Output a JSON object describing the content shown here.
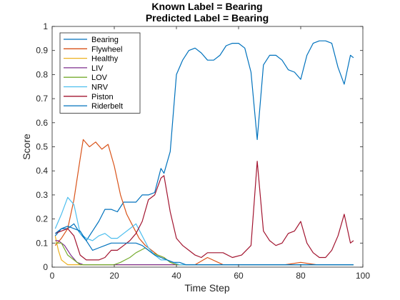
{
  "chart_data": {
    "type": "line",
    "title": "Known Label = Bearing",
    "subtitle": "Predicted Label = Bearing",
    "xlabel": "Time Step",
    "ylabel": "Score",
    "xlim": [
      0,
      100
    ],
    "ylim": [
      0,
      1
    ],
    "xticks": [
      0,
      20,
      40,
      60,
      80,
      100
    ],
    "yticks": [
      0,
      0.1,
      0.2,
      0.3,
      0.4,
      0.5,
      0.6,
      0.7,
      0.8,
      0.9,
      1
    ],
    "ytick_labels": [
      "0",
      "0.1",
      "0.2",
      "0.3",
      "0.4",
      "0.5",
      "0.6",
      "0.7",
      "0.8",
      "0.9",
      "1"
    ],
    "grid": false,
    "legend_position": "top-left",
    "series": [
      {
        "name": "Bearing",
        "color": "#0072BD",
        "x": [
          1,
          3,
          5,
          7,
          9,
          11,
          13,
          15,
          17,
          19,
          21,
          23,
          25,
          27,
          29,
          31,
          33,
          35,
          36,
          38,
          40,
          42,
          44,
          46,
          48,
          50,
          52,
          54,
          56,
          58,
          60,
          62,
          64,
          66,
          68,
          70,
          72,
          74,
          76,
          78,
          80,
          82,
          84,
          86,
          88,
          90,
          92,
          94,
          96,
          97
        ],
        "y": [
          0.13,
          0.16,
          0.16,
          0.18,
          0.14,
          0.11,
          0.15,
          0.19,
          0.24,
          0.24,
          0.23,
          0.27,
          0.27,
          0.27,
          0.3,
          0.3,
          0.31,
          0.41,
          0.39,
          0.48,
          0.8,
          0.86,
          0.9,
          0.91,
          0.89,
          0.86,
          0.86,
          0.88,
          0.92,
          0.93,
          0.93,
          0.91,
          0.81,
          0.53,
          0.84,
          0.88,
          0.88,
          0.86,
          0.82,
          0.81,
          0.78,
          0.88,
          0.93,
          0.94,
          0.94,
          0.93,
          0.83,
          0.76,
          0.88,
          0.87
        ]
      },
      {
        "name": "Flywheel",
        "color": "#D95319",
        "x": [
          1,
          3,
          5,
          7,
          9,
          10,
          12,
          14,
          16,
          18,
          20,
          22,
          24,
          26,
          28,
          30,
          32,
          34,
          36,
          38,
          40,
          42,
          44,
          46,
          50,
          55,
          60,
          65,
          70,
          75,
          80,
          85,
          90,
          95,
          97
        ],
        "y": [
          0.09,
          0.12,
          0.16,
          0.28,
          0.45,
          0.53,
          0.5,
          0.52,
          0.49,
          0.51,
          0.42,
          0.3,
          0.22,
          0.17,
          0.12,
          0.09,
          0.07,
          0.05,
          0.04,
          0.02,
          0.01,
          0.01,
          0.01,
          0.01,
          0.04,
          0.01,
          0.01,
          0.01,
          0.01,
          0.01,
          0.02,
          0.01,
          0.01,
          0.01,
          0.01
        ]
      },
      {
        "name": "Healthy",
        "color": "#EDB120",
        "x": [
          1,
          2,
          3,
          4,
          5,
          6,
          8,
          10,
          15,
          20,
          30,
          40,
          50,
          60,
          70,
          80,
          90,
          97
        ],
        "y": [
          0.13,
          0.07,
          0.03,
          0.02,
          0.01,
          0.01,
          0.01,
          0.01,
          0.01,
          0.01,
          0.01,
          0.01,
          0.01,
          0.01,
          0.01,
          0.01,
          0.01,
          0.01
        ]
      },
      {
        "name": "LIV",
        "color": "#7E2F8E",
        "x": [
          1,
          2,
          4,
          6,
          8,
          10,
          12,
          15,
          20,
          25,
          30,
          35,
          40,
          50,
          60,
          70,
          80,
          90,
          97
        ],
        "y": [
          0.11,
          0.11,
          0.09,
          0.05,
          0.02,
          0.01,
          0.01,
          0.01,
          0.01,
          0.01,
          0.01,
          0.01,
          0.01,
          0.01,
          0.01,
          0.01,
          0.01,
          0.01,
          0.01
        ]
      },
      {
        "name": "LOV",
        "color": "#77AC30",
        "x": [
          1,
          3,
          5,
          7,
          9,
          12,
          15,
          20,
          22,
          25,
          27,
          30,
          32,
          34,
          36,
          38,
          40,
          42,
          44,
          46,
          50,
          60,
          70,
          80,
          90,
          97
        ],
        "y": [
          0.1,
          0.1,
          0.05,
          0.03,
          0.01,
          0.01,
          0.01,
          0.01,
          0.02,
          0.04,
          0.06,
          0.08,
          0.06,
          0.05,
          0.04,
          0.02,
          0.01,
          0.01,
          0.01,
          0.01,
          0.01,
          0.01,
          0.01,
          0.01,
          0.01,
          0.01
        ]
      },
      {
        "name": "NRV",
        "color": "#4DBEEE",
        "x": [
          1,
          3,
          5,
          7,
          9,
          11,
          13,
          15,
          17,
          19,
          21,
          23,
          25,
          27,
          29,
          31,
          33,
          35,
          37,
          39,
          41,
          43,
          45,
          50,
          55,
          60,
          65,
          70,
          80,
          90,
          97
        ],
        "y": [
          0.16,
          0.22,
          0.29,
          0.26,
          0.14,
          0.12,
          0.11,
          0.13,
          0.14,
          0.12,
          0.12,
          0.14,
          0.16,
          0.18,
          0.13,
          0.08,
          0.05,
          0.03,
          0.03,
          0.02,
          0.01,
          0.01,
          0.01,
          0.01,
          0.01,
          0.01,
          0.01,
          0.01,
          0.01,
          0.01,
          0.01
        ]
      },
      {
        "name": "Piston",
        "color": "#A2142F",
        "x": [
          1,
          3,
          5,
          7,
          9,
          11,
          13,
          15,
          17,
          19,
          21,
          23,
          25,
          27,
          29,
          31,
          33,
          35,
          36,
          38,
          40,
          42,
          44,
          46,
          48,
          50,
          52,
          55,
          58,
          61,
          64,
          66,
          68,
          70,
          72,
          74,
          76,
          78,
          80,
          82,
          84,
          86,
          88,
          90,
          92,
          94,
          96,
          97
        ],
        "y": [
          0.14,
          0.15,
          0.16,
          0.13,
          0.05,
          0.03,
          0.03,
          0.03,
          0.04,
          0.07,
          0.07,
          0.09,
          0.11,
          0.14,
          0.19,
          0.28,
          0.3,
          0.37,
          0.38,
          0.23,
          0.12,
          0.09,
          0.07,
          0.05,
          0.04,
          0.06,
          0.06,
          0.06,
          0.04,
          0.05,
          0.09,
          0.44,
          0.15,
          0.11,
          0.09,
          0.1,
          0.14,
          0.15,
          0.19,
          0.1,
          0.06,
          0.04,
          0.04,
          0.07,
          0.13,
          0.22,
          0.1,
          0.11
        ]
      },
      {
        "name": "Riderbelt",
        "color": "#0072BD",
        "x": [
          1,
          3,
          5,
          7,
          9,
          11,
          13,
          15,
          17,
          19,
          21,
          23,
          25,
          27,
          29,
          31,
          33,
          35,
          37,
          39,
          41,
          43,
          45,
          50,
          55,
          60,
          65,
          70,
          80,
          90,
          97
        ],
        "y": [
          0.14,
          0.16,
          0.17,
          0.16,
          0.15,
          0.11,
          0.07,
          0.08,
          0.09,
          0.1,
          0.1,
          0.1,
          0.1,
          0.1,
          0.09,
          0.07,
          0.05,
          0.04,
          0.03,
          0.02,
          0.02,
          0.01,
          0.01,
          0.01,
          0.01,
          0.01,
          0.01,
          0.01,
          0.01,
          0.01,
          0.01
        ]
      }
    ]
  }
}
